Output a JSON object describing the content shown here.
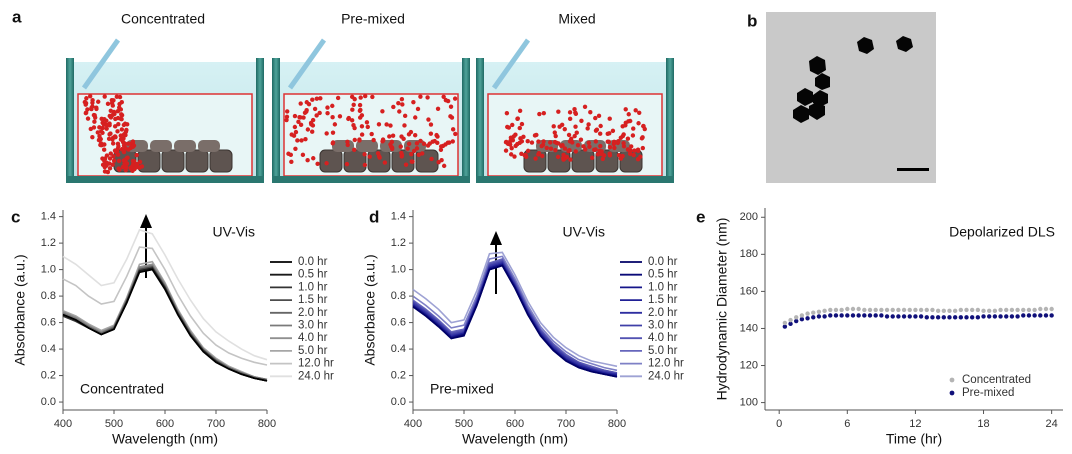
{
  "figure": {
    "panel_labels": [
      "a",
      "b",
      "c",
      "d",
      "e"
    ],
    "panel_a_titles": [
      "Concentrated",
      "Pre-mixed",
      "Mixed"
    ]
  },
  "chart_data": [
    {
      "type": "line",
      "annotations": [
        "UV-Vis",
        "Concentrated"
      ],
      "xlabel": "Wavelength (nm)",
      "ylabel": "Absorbance (a.u.)",
      "x": [
        400,
        425,
        450,
        475,
        500,
        525,
        550,
        575,
        600,
        625,
        650,
        675,
        700,
        725,
        750,
        775,
        800
      ],
      "xlim": [
        400,
        800
      ],
      "xticks": [
        400,
        500,
        600,
        700,
        800
      ],
      "ylim": [
        -0.06,
        1.45
      ],
      "yticks": [
        {
          "value": 0,
          "label": "0.0"
        },
        0.2,
        0.4,
        0.6,
        0.8,
        {
          "value": 1,
          "label": "1.0"
        },
        1.2,
        1.4
      ],
      "grid": false,
      "legend": "right",
      "series": [
        {
          "name": "0.0 hr",
          "color": "#000000",
          "values": [
            0.66,
            0.62,
            0.56,
            0.51,
            0.55,
            0.75,
            0.98,
            1.0,
            0.85,
            0.66,
            0.5,
            0.38,
            0.3,
            0.25,
            0.21,
            0.18,
            0.16
          ]
        },
        {
          "name": "0.5 hr",
          "color": "#1a1a1a",
          "values": [
            0.66,
            0.62,
            0.56,
            0.51,
            0.55,
            0.75,
            0.99,
            1.01,
            0.86,
            0.66,
            0.5,
            0.38,
            0.3,
            0.25,
            0.21,
            0.18,
            0.16
          ]
        },
        {
          "name": "1.0 hr",
          "color": "#333333",
          "values": [
            0.65,
            0.61,
            0.56,
            0.51,
            0.55,
            0.76,
            0.99,
            1.01,
            0.86,
            0.67,
            0.51,
            0.39,
            0.31,
            0.25,
            0.21,
            0.18,
            0.16
          ]
        },
        {
          "name": "1.5 hr",
          "color": "#4d4d4d",
          "values": [
            0.65,
            0.61,
            0.56,
            0.51,
            0.56,
            0.76,
            1.0,
            1.02,
            0.87,
            0.67,
            0.51,
            0.39,
            0.31,
            0.25,
            0.21,
            0.18,
            0.16
          ]
        },
        {
          "name": "2.0 hr",
          "color": "#666666",
          "values": [
            0.66,
            0.62,
            0.57,
            0.52,
            0.56,
            0.77,
            1.0,
            1.02,
            0.87,
            0.68,
            0.52,
            0.39,
            0.31,
            0.26,
            0.22,
            0.18,
            0.17
          ]
        },
        {
          "name": "3.0 hr",
          "color": "#7a7a7a",
          "values": [
            0.67,
            0.63,
            0.57,
            0.52,
            0.57,
            0.77,
            1.01,
            1.03,
            0.88,
            0.68,
            0.52,
            0.4,
            0.32,
            0.26,
            0.22,
            0.19,
            0.17
          ]
        },
        {
          "name": "4.0 hr",
          "color": "#8f8f8f",
          "values": [
            0.68,
            0.64,
            0.58,
            0.53,
            0.57,
            0.78,
            1.02,
            1.04,
            0.89,
            0.69,
            0.53,
            0.4,
            0.32,
            0.26,
            0.22,
            0.19,
            0.17
          ]
        },
        {
          "name": "5.0 hr",
          "color": "#a6a6a6",
          "values": [
            0.69,
            0.65,
            0.59,
            0.54,
            0.58,
            0.79,
            1.04,
            1.06,
            0.9,
            0.7,
            0.54,
            0.41,
            0.33,
            0.27,
            0.23,
            0.19,
            0.17
          ]
        },
        {
          "name": "12.0 hr",
          "color": "#c4c4c4",
          "values": [
            0.93,
            0.88,
            0.8,
            0.74,
            0.76,
            0.95,
            1.17,
            1.16,
            1.0,
            0.81,
            0.65,
            0.52,
            0.43,
            0.37,
            0.33,
            0.3,
            0.28
          ]
        },
        {
          "name": "24.0 hr",
          "color": "#e0e0e0",
          "values": [
            1.1,
            1.04,
            0.96,
            0.88,
            0.9,
            1.08,
            1.3,
            1.27,
            1.11,
            0.93,
            0.77,
            0.63,
            0.53,
            0.46,
            0.4,
            0.35,
            0.32
          ]
        }
      ]
    },
    {
      "type": "line",
      "annotations": [
        "UV-Vis",
        "Pre-mixed"
      ],
      "xlabel": "Wavelength (nm)",
      "ylabel": "Absorbance (a.u.)",
      "x": [
        400,
        425,
        450,
        475,
        500,
        525,
        550,
        575,
        600,
        625,
        650,
        675,
        700,
        725,
        750,
        775,
        800
      ],
      "xlim": [
        400,
        800
      ],
      "xticks": [
        400,
        500,
        600,
        700,
        800
      ],
      "ylim": [
        -0.06,
        1.45
      ],
      "yticks": [
        {
          "value": 0,
          "label": "0.0"
        },
        0.2,
        0.4,
        0.6,
        0.8,
        {
          "value": 1,
          "label": "1.0"
        },
        1.2,
        1.4
      ],
      "grid": false,
      "legend": "right",
      "series": [
        {
          "name": "0.0 hr",
          "color": "#000066",
          "values": [
            0.72,
            0.65,
            0.57,
            0.48,
            0.5,
            0.73,
            1.0,
            1.03,
            0.86,
            0.66,
            0.5,
            0.39,
            0.31,
            0.26,
            0.23,
            0.21,
            0.19
          ]
        },
        {
          "name": "0.5 hr",
          "color": "#0a0a78",
          "values": [
            0.72,
            0.65,
            0.57,
            0.48,
            0.51,
            0.73,
            1.0,
            1.03,
            0.86,
            0.66,
            0.5,
            0.39,
            0.31,
            0.26,
            0.23,
            0.21,
            0.19
          ]
        },
        {
          "name": "1.0 hr",
          "color": "#15158a",
          "values": [
            0.73,
            0.66,
            0.58,
            0.49,
            0.51,
            0.74,
            1.01,
            1.04,
            0.87,
            0.67,
            0.51,
            0.4,
            0.32,
            0.27,
            0.24,
            0.21,
            0.2
          ]
        },
        {
          "name": "1.5 hr",
          "color": "#202096",
          "values": [
            0.73,
            0.66,
            0.58,
            0.49,
            0.52,
            0.74,
            1.01,
            1.04,
            0.87,
            0.67,
            0.51,
            0.4,
            0.32,
            0.27,
            0.24,
            0.22,
            0.2
          ]
        },
        {
          "name": "2.0 hr",
          "color": "#2e2ea0",
          "values": [
            0.74,
            0.67,
            0.59,
            0.5,
            0.52,
            0.75,
            1.02,
            1.05,
            0.88,
            0.68,
            0.52,
            0.41,
            0.33,
            0.28,
            0.25,
            0.22,
            0.21
          ]
        },
        {
          "name": "3.0 hr",
          "color": "#3f3fa8",
          "values": [
            0.75,
            0.68,
            0.6,
            0.51,
            0.53,
            0.76,
            1.03,
            1.06,
            0.89,
            0.69,
            0.53,
            0.42,
            0.34,
            0.29,
            0.25,
            0.23,
            0.21
          ]
        },
        {
          "name": "4.0 hr",
          "color": "#5252b2",
          "values": [
            0.76,
            0.69,
            0.61,
            0.52,
            0.54,
            0.77,
            1.04,
            1.07,
            0.9,
            0.7,
            0.54,
            0.43,
            0.35,
            0.3,
            0.26,
            0.24,
            0.22
          ]
        },
        {
          "name": "5.0 hr",
          "color": "#6666bc",
          "values": [
            0.77,
            0.7,
            0.62,
            0.53,
            0.55,
            0.78,
            1.05,
            1.08,
            0.91,
            0.71,
            0.55,
            0.44,
            0.36,
            0.3,
            0.27,
            0.24,
            0.22
          ]
        },
        {
          "name": "12.0 hr",
          "color": "#7e80c6",
          "values": [
            0.8,
            0.73,
            0.65,
            0.56,
            0.58,
            0.8,
            1.08,
            1.1,
            0.93,
            0.73,
            0.57,
            0.46,
            0.38,
            0.32,
            0.29,
            0.26,
            0.24
          ]
        },
        {
          "name": "24.0 hr",
          "color": "#9ea2d4",
          "values": [
            0.85,
            0.78,
            0.7,
            0.6,
            0.62,
            0.84,
            1.12,
            1.13,
            0.96,
            0.76,
            0.6,
            0.49,
            0.41,
            0.35,
            0.31,
            0.29,
            0.27
          ]
        }
      ]
    },
    {
      "type": "scatter",
      "annotations": [
        "Depolarized DLS"
      ],
      "xlabel": "Time (hr)",
      "ylabel": "Hydrodynamic Diameter (nm)",
      "x": [
        0.5,
        1,
        1.5,
        2,
        2.5,
        3,
        3.5,
        4,
        4.5,
        5,
        5.5,
        6,
        6.5,
        7,
        7.5,
        8,
        8.5,
        9,
        9.5,
        10,
        10.5,
        11,
        11.5,
        12,
        12.5,
        13,
        13.5,
        14,
        14.5,
        15,
        15.5,
        16,
        16.5,
        17,
        17.5,
        18,
        18.5,
        19,
        19.5,
        20,
        20.5,
        21,
        21.5,
        22,
        22.5,
        23,
        23.5,
        24
      ],
      "xlim": [
        -1.25,
        25
      ],
      "xticks": [
        0,
        6,
        12,
        18,
        24
      ],
      "ylim": [
        96,
        205
      ],
      "yticks": [
        100,
        120,
        140,
        160,
        180,
        200
      ],
      "grid": false,
      "legend": "lower right",
      "series": [
        {
          "name": "Concentrated",
          "color": "#b4b4b4",
          "values": [
            143,
            144.5,
            146,
            147,
            148,
            148.5,
            149,
            149.5,
            150,
            150,
            150,
            150.5,
            150.5,
            150.5,
            150,
            150,
            150,
            150,
            150,
            150,
            150,
            150,
            150,
            150,
            150,
            150,
            150,
            149.5,
            149.5,
            149.5,
            149.5,
            150,
            150,
            150,
            150,
            149.5,
            149.5,
            149.5,
            150,
            150,
            150,
            150,
            150,
            150,
            150,
            150.5,
            150.5,
            150.5
          ]
        },
        {
          "name": "Pre-mixed",
          "color": "#10107a",
          "values": [
            141,
            142.5,
            144,
            145,
            145.5,
            146,
            146.5,
            146.5,
            147,
            147,
            147,
            147,
            147,
            147,
            147,
            147,
            147,
            147,
            146.5,
            146.5,
            146.5,
            146.5,
            146.5,
            146.5,
            146.5,
            146,
            146,
            146,
            146,
            146,
            146,
            146,
            146,
            146,
            146,
            146.5,
            146.5,
            146.5,
            146.5,
            146.5,
            146.5,
            146.5,
            147,
            147,
            147,
            147,
            147,
            147
          ]
        }
      ]
    }
  ]
}
